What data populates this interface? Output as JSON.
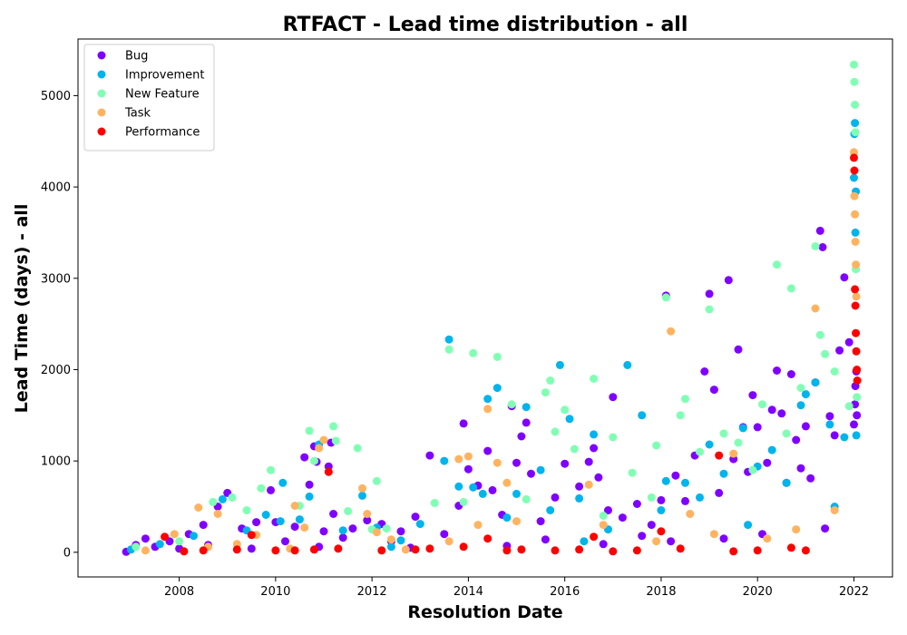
{
  "chart_data": {
    "type": "scatter",
    "title": "RTFACT - Lead time distribution - all",
    "xlabel": "Resolution Date",
    "ylabel": "Lead Time (days) - all",
    "xlim": [
      2005.9,
      2022.8
    ],
    "ylim": [
      -270,
      5620
    ],
    "xticks": [
      2008,
      2010,
      2012,
      2014,
      2016,
      2018,
      2020,
      2022
    ],
    "yticks": [
      0,
      1000,
      2000,
      3000,
      4000,
      5000
    ],
    "grid": false,
    "legend_position": "top-left",
    "series": [
      {
        "name": "Bug",
        "color": "#8000ff",
        "points": [
          [
            2006.9,
            5
          ],
          [
            2007.1,
            80
          ],
          [
            2007.3,
            150
          ],
          [
            2007.5,
            60
          ],
          [
            2007.8,
            120
          ],
          [
            2008.0,
            40
          ],
          [
            2008.2,
            200
          ],
          [
            2008.5,
            300
          ],
          [
            2008.8,
            500
          ],
          [
            2009.0,
            650
          ],
          [
            2009.3,
            260
          ],
          [
            2009.6,
            330
          ],
          [
            2009.9,
            680
          ],
          [
            2010.0,
            330
          ],
          [
            2010.2,
            120
          ],
          [
            2010.4,
            280
          ],
          [
            2010.6,
            1040
          ],
          [
            2010.7,
            740
          ],
          [
            2010.8,
            1160
          ],
          [
            2010.85,
            990
          ],
          [
            2011.0,
            230
          ],
          [
            2011.1,
            940
          ],
          [
            2011.15,
            1200
          ],
          [
            2011.2,
            420
          ],
          [
            2011.4,
            160
          ],
          [
            2011.6,
            260
          ],
          [
            2011.9,
            350
          ],
          [
            2012.2,
            310
          ],
          [
            2012.4,
            120
          ],
          [
            2012.6,
            230
          ],
          [
            2012.9,
            390
          ],
          [
            2013.2,
            1060
          ],
          [
            2013.5,
            200
          ],
          [
            2013.8,
            510
          ],
          [
            2013.9,
            1410
          ],
          [
            2014.0,
            910
          ],
          [
            2014.2,
            730
          ],
          [
            2014.4,
            1110
          ],
          [
            2014.5,
            680
          ],
          [
            2014.7,
            410
          ],
          [
            2014.9,
            1600
          ],
          [
            2015.0,
            980
          ],
          [
            2015.1,
            1270
          ],
          [
            2015.2,
            1420
          ],
          [
            2015.3,
            860
          ],
          [
            2015.5,
            340
          ],
          [
            2015.8,
            600
          ],
          [
            2016.0,
            970
          ],
          [
            2016.3,
            720
          ],
          [
            2016.5,
            990
          ],
          [
            2016.6,
            1140
          ],
          [
            2016.7,
            820
          ],
          [
            2016.9,
            460
          ],
          [
            2017.0,
            1700
          ],
          [
            2017.2,
            380
          ],
          [
            2017.5,
            530
          ],
          [
            2017.8,
            300
          ],
          [
            2018.0,
            570
          ],
          [
            2018.1,
            2810
          ],
          [
            2018.3,
            840
          ],
          [
            2018.5,
            560
          ],
          [
            2018.7,
            1060
          ],
          [
            2018.9,
            1980
          ],
          [
            2019.0,
            2830
          ],
          [
            2019.1,
            1780
          ],
          [
            2019.2,
            650
          ],
          [
            2019.4,
            2980
          ],
          [
            2019.5,
            1020
          ],
          [
            2019.6,
            2220
          ],
          [
            2019.7,
            1370
          ],
          [
            2019.8,
            880
          ],
          [
            2019.9,
            1720
          ],
          [
            2020.0,
            1370
          ],
          [
            2020.2,
            980
          ],
          [
            2020.3,
            1560
          ],
          [
            2020.4,
            1990
          ],
          [
            2020.5,
            1520
          ],
          [
            2020.6,
            760
          ],
          [
            2020.7,
            1950
          ],
          [
            2020.8,
            1230
          ],
          [
            2020.9,
            920
          ],
          [
            2021.0,
            1380
          ],
          [
            2021.1,
            810
          ],
          [
            2021.2,
            1860
          ],
          [
            2021.3,
            3520
          ],
          [
            2021.35,
            3340
          ],
          [
            2021.5,
            1490
          ],
          [
            2021.6,
            1280
          ],
          [
            2021.7,
            2210
          ],
          [
            2021.8,
            3010
          ],
          [
            2021.9,
            2300
          ],
          [
            2022.0,
            1400
          ],
          [
            2022.02,
            1620
          ],
          [
            2022.03,
            1820
          ],
          [
            2022.05,
            1980
          ],
          [
            2022.06,
            1500
          ],
          [
            2008.6,
            80
          ],
          [
            2009.5,
            40
          ],
          [
            2010.9,
            60
          ],
          [
            2012.8,
            50
          ],
          [
            2014.8,
            70
          ],
          [
            2016.8,
            90
          ],
          [
            2018.2,
            120
          ],
          [
            2019.3,
            150
          ],
          [
            2020.1,
            200
          ],
          [
            2021.4,
            260
          ],
          [
            2017.6,
            180
          ],
          [
            2015.6,
            140
          ]
        ]
      },
      {
        "name": "Improvement",
        "color": "#00b4ec",
        "points": [
          [
            2007.0,
            30
          ],
          [
            2007.6,
            90
          ],
          [
            2008.3,
            180
          ],
          [
            2008.9,
            580
          ],
          [
            2009.4,
            240
          ],
          [
            2009.8,
            410
          ],
          [
            2010.1,
            340
          ],
          [
            2010.15,
            760
          ],
          [
            2010.5,
            360
          ],
          [
            2010.7,
            610
          ],
          [
            2010.9,
            1180
          ],
          [
            2011.4,
            240
          ],
          [
            2011.8,
            620
          ],
          [
            2012.1,
            270
          ],
          [
            2012.6,
            130
          ],
          [
            2013.0,
            310
          ],
          [
            2013.5,
            1000
          ],
          [
            2013.6,
            2330
          ],
          [
            2013.8,
            720
          ],
          [
            2014.1,
            710
          ],
          [
            2014.3,
            640
          ],
          [
            2014.4,
            1680
          ],
          [
            2014.6,
            1800
          ],
          [
            2014.8,
            380
          ],
          [
            2015.0,
            640
          ],
          [
            2015.2,
            1590
          ],
          [
            2015.5,
            900
          ],
          [
            2015.7,
            460
          ],
          [
            2015.9,
            2050
          ],
          [
            2016.1,
            1460
          ],
          [
            2016.3,
            590
          ],
          [
            2016.6,
            1290
          ],
          [
            2016.9,
            250
          ],
          [
            2017.3,
            2050
          ],
          [
            2017.6,
            1500
          ],
          [
            2018.0,
            460
          ],
          [
            2018.1,
            780
          ],
          [
            2018.5,
            760
          ],
          [
            2018.8,
            600
          ],
          [
            2019.0,
            1180
          ],
          [
            2019.3,
            860
          ],
          [
            2019.7,
            1360
          ],
          [
            2020.0,
            940
          ],
          [
            2020.3,
            1120
          ],
          [
            2020.6,
            760
          ],
          [
            2020.9,
            1610
          ],
          [
            2021.0,
            1730
          ],
          [
            2021.2,
            1860
          ],
          [
            2021.5,
            1400
          ],
          [
            2021.8,
            1260
          ],
          [
            2022.0,
            4100
          ],
          [
            2022.01,
            4580
          ],
          [
            2022.02,
            4700
          ],
          [
            2022.03,
            3500
          ],
          [
            2022.04,
            3950
          ],
          [
            2022.05,
            1280
          ],
          [
            2012.4,
            60
          ],
          [
            2016.4,
            120
          ],
          [
            2019.8,
            300
          ],
          [
            2021.6,
            500
          ]
        ]
      },
      {
        "name": "New Feature",
        "color": "#80ffb4",
        "points": [
          [
            2007.1,
            60
          ],
          [
            2008.0,
            120
          ],
          [
            2008.7,
            550
          ],
          [
            2009.1,
            600
          ],
          [
            2009.4,
            460
          ],
          [
            2009.7,
            700
          ],
          [
            2009.9,
            900
          ],
          [
            2010.5,
            510
          ],
          [
            2010.7,
            1330
          ],
          [
            2010.8,
            1000
          ],
          [
            2011.2,
            1380
          ],
          [
            2011.25,
            1220
          ],
          [
            2011.5,
            450
          ],
          [
            2011.7,
            1140
          ],
          [
            2012.0,
            250
          ],
          [
            2012.1,
            780
          ],
          [
            2012.3,
            260
          ],
          [
            2013.3,
            540
          ],
          [
            2013.6,
            2220
          ],
          [
            2013.9,
            550
          ],
          [
            2014.1,
            2180
          ],
          [
            2014.6,
            2140
          ],
          [
            2014.9,
            1620
          ],
          [
            2015.2,
            580
          ],
          [
            2015.6,
            1750
          ],
          [
            2015.7,
            1880
          ],
          [
            2015.8,
            1320
          ],
          [
            2016.0,
            1560
          ],
          [
            2016.2,
            1130
          ],
          [
            2016.6,
            1900
          ],
          [
            2017.0,
            1260
          ],
          [
            2017.4,
            870
          ],
          [
            2017.9,
            1170
          ],
          [
            2018.1,
            2790
          ],
          [
            2018.4,
            1500
          ],
          [
            2018.5,
            1680
          ],
          [
            2018.8,
            1100
          ],
          [
            2019.0,
            2660
          ],
          [
            2019.3,
            1300
          ],
          [
            2019.6,
            1200
          ],
          [
            2020.1,
            1620
          ],
          [
            2020.4,
            3150
          ],
          [
            2020.7,
            2890
          ],
          [
            2020.9,
            1800
          ],
          [
            2021.2,
            3350
          ],
          [
            2021.3,
            2380
          ],
          [
            2021.4,
            2170
          ],
          [
            2021.6,
            1980
          ],
          [
            2021.9,
            1600
          ],
          [
            2022.0,
            5340
          ],
          [
            2022.01,
            5150
          ],
          [
            2022.02,
            4900
          ],
          [
            2022.03,
            4600
          ],
          [
            2022.04,
            3100
          ],
          [
            2022.05,
            2200
          ],
          [
            2022.06,
            1700
          ],
          [
            2019.9,
            900
          ],
          [
            2020.6,
            1300
          ],
          [
            2017.8,
            600
          ],
          [
            2016.8,
            400
          ]
        ]
      },
      {
        "name": "Task",
        "color": "#ffb360",
        "points": [
          [
            2007.3,
            20
          ],
          [
            2007.9,
            200
          ],
          [
            2008.4,
            490
          ],
          [
            2008.8,
            420
          ],
          [
            2009.2,
            90
          ],
          [
            2009.6,
            190
          ],
          [
            2010.3,
            40
          ],
          [
            2010.4,
            510
          ],
          [
            2010.6,
            270
          ],
          [
            2010.9,
            1140
          ],
          [
            2011.0,
            1230
          ],
          [
            2011.8,
            700
          ],
          [
            2011.9,
            420
          ],
          [
            2012.1,
            220
          ],
          [
            2012.4,
            140
          ],
          [
            2013.6,
            120
          ],
          [
            2013.8,
            1020
          ],
          [
            2014.0,
            1050
          ],
          [
            2014.2,
            300
          ],
          [
            2014.4,
            1570
          ],
          [
            2014.6,
            980
          ],
          [
            2014.8,
            760
          ],
          [
            2015.0,
            340
          ],
          [
            2016.5,
            740
          ],
          [
            2016.8,
            300
          ],
          [
            2017.9,
            120
          ],
          [
            2018.2,
            2420
          ],
          [
            2018.6,
            420
          ],
          [
            2019.1,
            200
          ],
          [
            2019.5,
            1080
          ],
          [
            2020.2,
            150
          ],
          [
            2020.8,
            250
          ],
          [
            2021.2,
            2670
          ],
          [
            2021.6,
            460
          ],
          [
            2022.0,
            4380
          ],
          [
            2022.01,
            3900
          ],
          [
            2022.02,
            3700
          ],
          [
            2022.03,
            3400
          ],
          [
            2022.04,
            3150
          ],
          [
            2022.05,
            2800
          ],
          [
            2008.6,
            60
          ],
          [
            2012.7,
            30
          ]
        ]
      },
      {
        "name": "Performance",
        "color": "#ff0000",
        "points": [
          [
            2007.7,
            170
          ],
          [
            2008.1,
            10
          ],
          [
            2008.5,
            20
          ],
          [
            2009.2,
            30
          ],
          [
            2009.5,
            190
          ],
          [
            2010.0,
            20
          ],
          [
            2010.4,
            20
          ],
          [
            2010.8,
            30
          ],
          [
            2011.1,
            880
          ],
          [
            2011.3,
            40
          ],
          [
            2012.2,
            20
          ],
          [
            2012.9,
            30
          ],
          [
            2013.2,
            40
          ],
          [
            2013.9,
            60
          ],
          [
            2014.4,
            150
          ],
          [
            2014.8,
            20
          ],
          [
            2015.1,
            30
          ],
          [
            2015.8,
            20
          ],
          [
            2016.3,
            30
          ],
          [
            2016.6,
            170
          ],
          [
            2017.0,
            10
          ],
          [
            2017.5,
            20
          ],
          [
            2018.0,
            230
          ],
          [
            2018.4,
            40
          ],
          [
            2019.2,
            1060
          ],
          [
            2019.5,
            10
          ],
          [
            2020.0,
            20
          ],
          [
            2020.7,
            50
          ],
          [
            2021.0,
            20
          ],
          [
            2022.0,
            4320
          ],
          [
            2022.01,
            4180
          ],
          [
            2022.02,
            2880
          ],
          [
            2022.03,
            2700
          ],
          [
            2022.04,
            2400
          ],
          [
            2022.05,
            2200
          ],
          [
            2022.06,
            2000
          ],
          [
            2022.07,
            1880
          ]
        ]
      }
    ]
  }
}
